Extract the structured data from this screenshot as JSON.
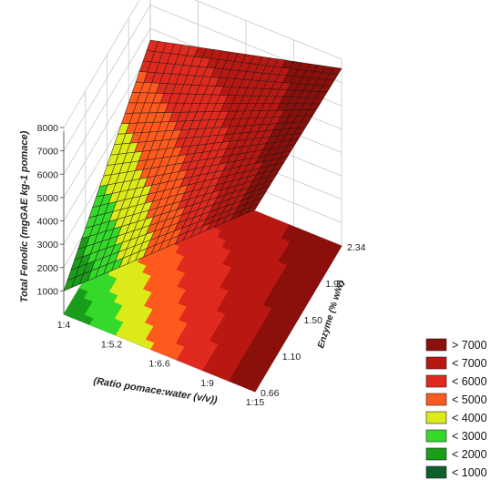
{
  "chart_data": {
    "type": "surface3d",
    "title": "",
    "zlabel": "Total Fenolic (mgGAE kg-1 pomace)",
    "xlabel": "(Ratio pomace:water (v/v))",
    "ylabel": "Enzyme (% w/w)",
    "x_ticks": [
      "1:4",
      "1:5.2",
      "1:6.6",
      "1:9",
      "1:15"
    ],
    "y_ticks": [
      "0.66",
      "1.10",
      "1.50",
      "1.90",
      "2.34"
    ],
    "z_ticks": [
      "1000",
      "2000",
      "3000",
      "4000",
      "5000",
      "6000",
      "7000",
      "8000"
    ],
    "zlim": [
      0,
      8000
    ],
    "grid": true,
    "surface": {
      "x_index": [
        0,
        1
      ],
      "y_index": [
        0,
        1
      ],
      "z_values": [
        [
          1000,
          5500
        ],
        [
          7800,
          7600
        ]
      ],
      "note_axes": "z_values[i][j]: i = x_index (ratio, 0 = 1:4, 1 = 1:15), j = y_index (enzyme, 0 = 0.66, 1 = 2.34)"
    },
    "legend": {
      "placement": "bottom-right",
      "entries": [
        {
          "label": "> 7000",
          "color": "#8b0f0a"
        },
        {
          "label": "< 7000",
          "color": "#b81811"
        },
        {
          "label": "< 6000",
          "color": "#e02a1f"
        },
        {
          "label": "< 5000",
          "color": "#ff5a1e"
        },
        {
          "label": "< 4000",
          "color": "#dcea19"
        },
        {
          "label": "< 3000",
          "color": "#35d92a"
        },
        {
          "label": "< 2000",
          "color": "#1a9e1a"
        },
        {
          "label": "< 1000",
          "color": "#0e5f2c"
        }
      ]
    }
  }
}
